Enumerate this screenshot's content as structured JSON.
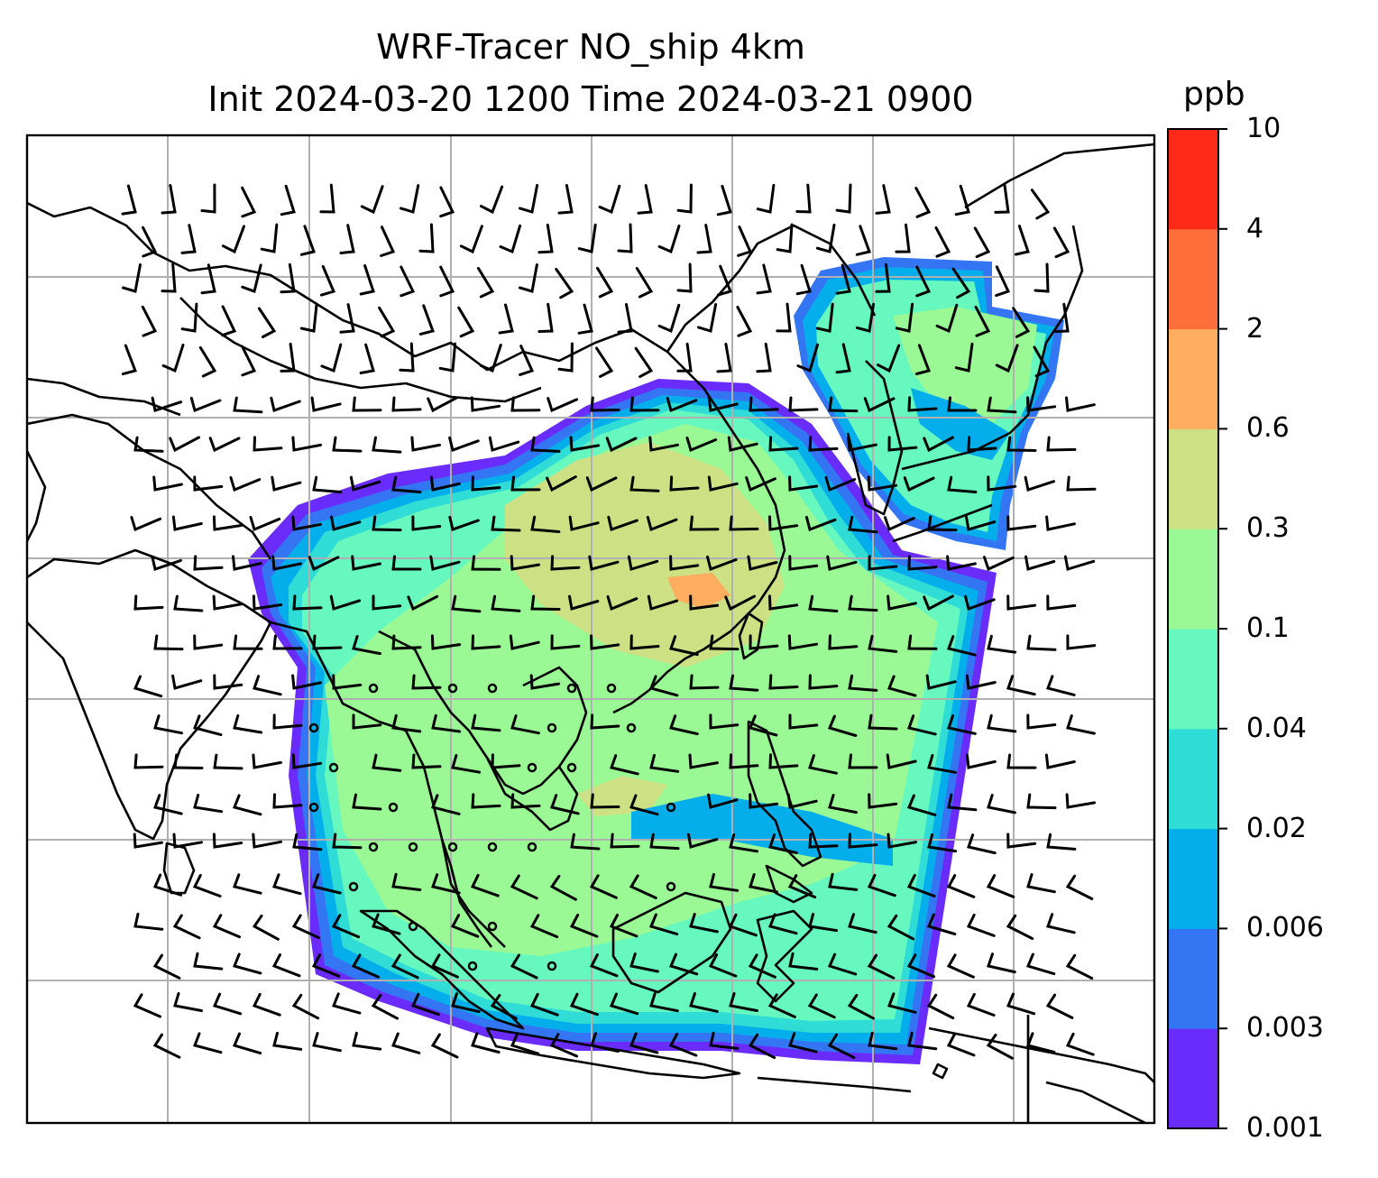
{
  "title_line1": "WRF-Tracer NO_ship 4km",
  "title_line2": "Init 2024-03-20 1200 Time 2024-03-21 0900",
  "colorbar": {
    "unit": "ppb",
    "levels": [
      "0.001",
      "0.003",
      "0.006",
      "0.02",
      "0.04",
      "0.1",
      "0.3",
      "0.6",
      "2",
      "4",
      "10"
    ],
    "colors": [
      "#6a2cfb",
      "#3475f3",
      "#04aeea",
      "#2fdcd6",
      "#66f8be",
      "#9bf995",
      "#cde184",
      "#ffae5f",
      "#ff6f3b",
      "#ff2a17"
    ]
  },
  "map": {
    "gridlines": true,
    "land_outline_color": "#000000",
    "grid_color": "#b0b0b0",
    "wind_barbs": true
  }
}
